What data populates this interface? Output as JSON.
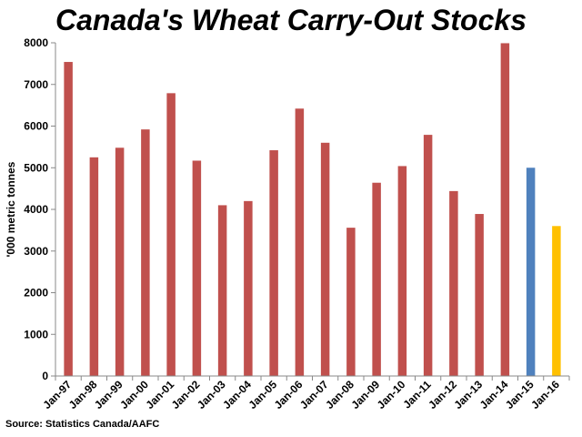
{
  "chart_data": {
    "type": "bar",
    "title": "Canada's Wheat Carry-Out Stocks",
    "ylabel": "'000 metric tonnes",
    "xlabel": "",
    "ylim": [
      0,
      8000
    ],
    "yticks": [
      0,
      1000,
      2000,
      3000,
      4000,
      5000,
      6000,
      7000,
      8000
    ],
    "categories": [
      "Jan-97",
      "Jan-98",
      "Jan-99",
      "Jan-00",
      "Jan-01",
      "Jan-02",
      "Jan-03",
      "Jan-04",
      "Jan-05",
      "Jan-06",
      "Jan-07",
      "Jan-08",
      "Jan-09",
      "Jan-10",
      "Jan-11",
      "Jan-12",
      "Jan-13",
      "Jan-14",
      "Jan-15",
      "Jan-16"
    ],
    "values": [
      7540,
      5250,
      5480,
      5920,
      6790,
      5170,
      4100,
      4200,
      5420,
      6420,
      5600,
      3560,
      4640,
      5040,
      5790,
      4440,
      3890,
      7990,
      5000,
      3600
    ],
    "bar_colors": [
      "#c0504d",
      "#c0504d",
      "#c0504d",
      "#c0504d",
      "#c0504d",
      "#c0504d",
      "#c0504d",
      "#c0504d",
      "#c0504d",
      "#c0504d",
      "#c0504d",
      "#c0504d",
      "#c0504d",
      "#c0504d",
      "#c0504d",
      "#c0504d",
      "#c0504d",
      "#c0504d",
      "#4f81bd",
      "#ffc000"
    ],
    "grid": false
  },
  "source": "Source: Statistics Canada/AAFC"
}
